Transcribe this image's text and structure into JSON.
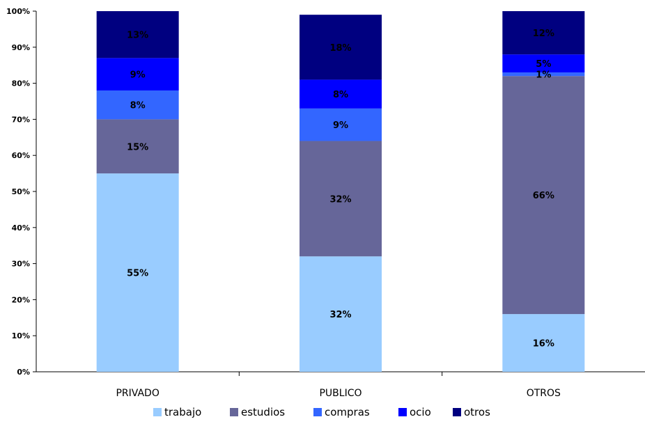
{
  "chart_data": {
    "type": "bar",
    "stacked": true,
    "normalized": true,
    "categories": [
      "PRIVADO",
      "PUBLICO",
      "OTROS"
    ],
    "series": [
      {
        "name": "trabajo",
        "color": "#99ccff",
        "values": [
          55,
          32,
          16
        ],
        "labels": [
          "55%",
          "32%",
          "16%"
        ]
      },
      {
        "name": "estudios",
        "color": "#666699",
        "values": [
          15,
          32,
          66
        ],
        "labels": [
          "15%",
          "32%",
          "66%"
        ]
      },
      {
        "name": "compras",
        "color": "#3366ff",
        "values": [
          8,
          9,
          1
        ],
        "labels": [
          "8%",
          "9%",
          "1%"
        ]
      },
      {
        "name": "ocio",
        "color": "#0000ff",
        "values": [
          9,
          8,
          5
        ],
        "labels": [
          "9%",
          "8%",
          "5%"
        ]
      },
      {
        "name": "otros",
        "color": "#000080",
        "values": [
          13,
          18,
          12
        ],
        "labels": [
          "13%",
          "18%",
          "12%"
        ]
      }
    ],
    "ylim": [
      0,
      100
    ],
    "yticks": [
      "0%",
      "10%",
      "20%",
      "30%",
      "40%",
      "50%",
      "60%",
      "70%",
      "80%",
      "90%",
      "100%"
    ],
    "legend_position": "bottom",
    "grid": false
  }
}
